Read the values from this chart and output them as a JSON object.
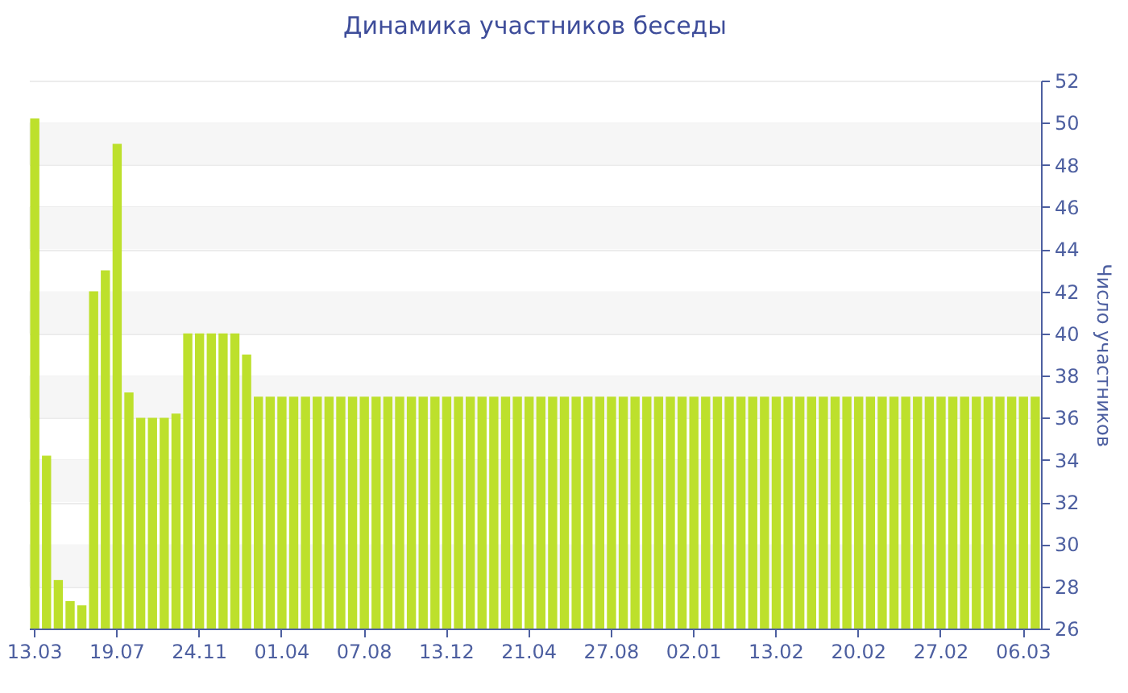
{
  "chart_data": {
    "type": "bar",
    "title": "Динамика участников беседы",
    "ylabel": "Число участников",
    "categories": [
      "13.03",
      null,
      null,
      null,
      null,
      null,
      null,
      "19.07",
      null,
      null,
      null,
      null,
      null,
      null,
      "24.11",
      null,
      null,
      null,
      null,
      null,
      null,
      "01.04",
      null,
      null,
      null,
      null,
      null,
      null,
      "07.08",
      null,
      null,
      null,
      null,
      null,
      null,
      "13.12",
      null,
      null,
      null,
      null,
      null,
      null,
      "21.04",
      null,
      null,
      null,
      null,
      null,
      null,
      "27.08",
      null,
      null,
      null,
      null,
      null,
      null,
      "02.01",
      null,
      null,
      null,
      null,
      null,
      null,
      "13.02",
      null,
      null,
      null,
      null,
      null,
      null,
      "20.02",
      null,
      null,
      null,
      null,
      null,
      null,
      "27.02",
      null,
      null,
      null,
      null,
      null,
      null,
      "06.03",
      null
    ],
    "values": [
      50.2,
      34.2,
      28.3,
      27.3,
      27.1,
      42,
      43,
      49,
      37.2,
      36,
      36,
      36,
      36.2,
      40,
      40,
      40,
      40,
      40,
      39,
      37,
      37,
      37,
      37,
      37,
      37,
      37,
      37,
      37,
      37,
      37,
      37,
      37,
      37,
      37,
      37,
      37,
      37,
      37,
      37,
      37,
      37,
      37,
      37,
      37,
      37,
      37,
      37,
      37,
      37,
      37,
      37,
      37,
      37,
      37,
      37,
      37,
      37,
      37,
      37,
      37,
      37,
      37,
      37,
      37,
      37,
      37,
      37,
      37,
      37,
      37,
      37,
      37,
      37,
      37,
      37,
      37,
      37,
      37,
      37,
      37,
      37,
      37,
      37,
      37,
      37,
      37
    ],
    "color": "#bde02c",
    "ylim": [
      26,
      52
    ],
    "yticks": [
      26,
      28,
      30,
      32,
      34,
      36,
      38,
      40,
      42,
      44,
      46,
      48,
      50,
      52
    ],
    "grid": true
  }
}
